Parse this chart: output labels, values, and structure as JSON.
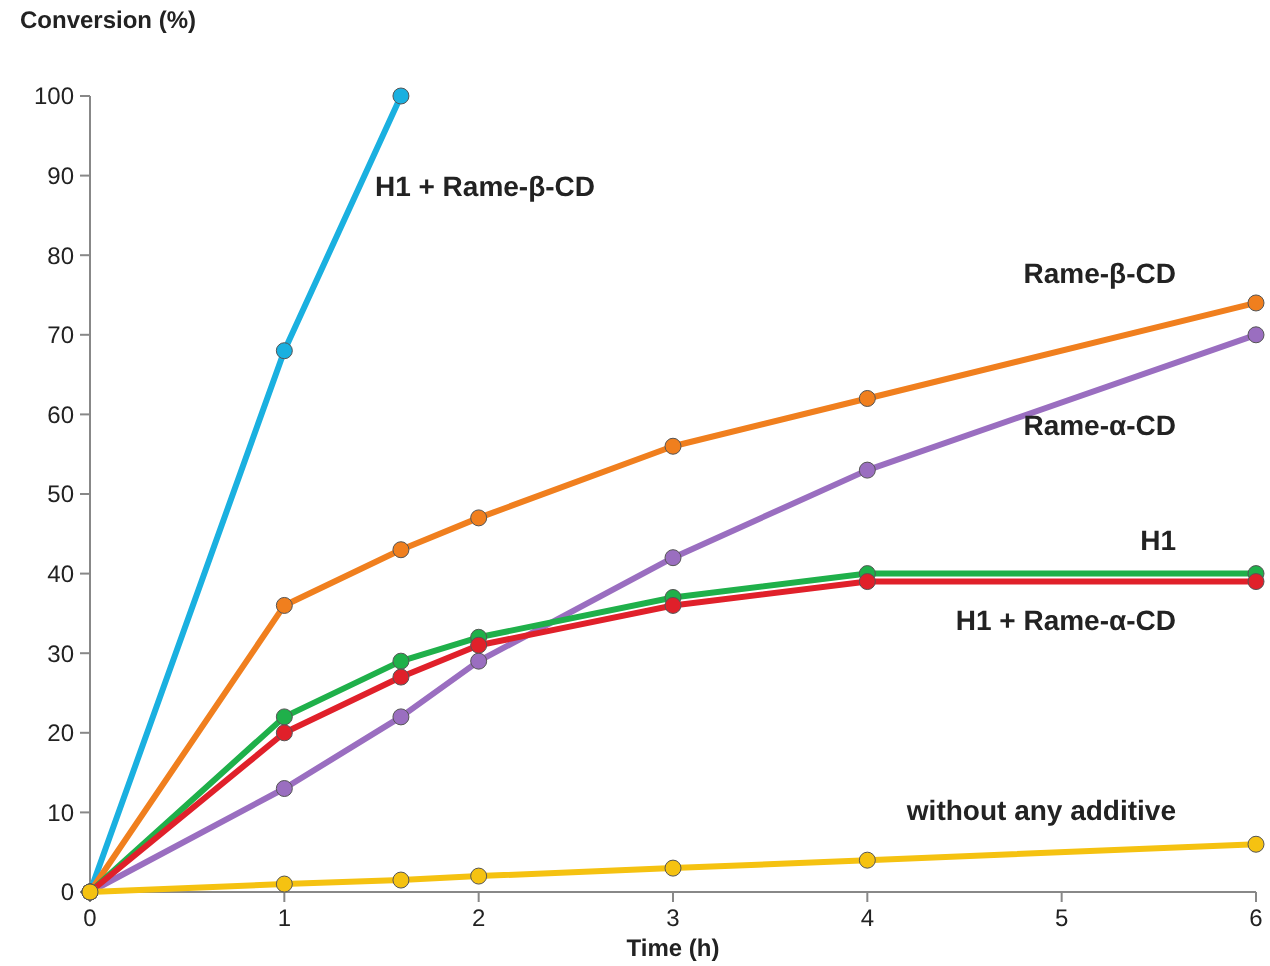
{
  "chart_data": {
    "type": "line",
    "xlabel": "Time (h)",
    "ylabel": "Conversion (%)",
    "xlim": [
      0,
      6
    ],
    "xticks": [
      0,
      1,
      2,
      3,
      4,
      5,
      6
    ],
    "ylim": [
      0,
      100
    ],
    "yticks": [
      0,
      10,
      20,
      30,
      40,
      50,
      60,
      70,
      80,
      90,
      100
    ],
    "grid": false,
    "legend": false,
    "marker": "circle",
    "line_style": "solid",
    "series": [
      {
        "name": "H1 + Rame-β-CD",
        "color": "#1ab0e0",
        "x": [
          0,
          1,
          1.6
        ],
        "values": [
          0,
          68,
          100
        ]
      },
      {
        "name": "Rame-β-CD",
        "color": "#f07f1e",
        "x": [
          0,
          1,
          1.6,
          2,
          3,
          4,
          6
        ],
        "values": [
          0,
          36,
          43,
          47,
          56,
          62,
          74
        ]
      },
      {
        "name": "Rame-α-CD",
        "color": "#9a6ec0",
        "x": [
          0,
          1,
          1.6,
          2,
          3,
          4,
          6
        ],
        "values": [
          0,
          13,
          22,
          29,
          42,
          53,
          70
        ]
      },
      {
        "name": "H1",
        "color": "#1fb04a",
        "x": [
          0,
          1,
          1.6,
          2,
          3,
          4,
          6
        ],
        "values": [
          0,
          22,
          29,
          32,
          37,
          40,
          40
        ]
      },
      {
        "name": "H1 + Rame-α-CD",
        "color": "#e0202a",
        "x": [
          0,
          1,
          1.6,
          2,
          3,
          4,
          6
        ],
        "values": [
          0,
          20,
          27,
          31,
          36,
          39,
          39
        ]
      },
      {
        "name": "without any additive",
        "color": "#f5c211",
        "x": [
          0,
          1,
          1.6,
          2,
          3,
          4,
          6
        ],
        "values": [
          0,
          1,
          1.5,
          2,
          3,
          4,
          6
        ]
      }
    ]
  }
}
